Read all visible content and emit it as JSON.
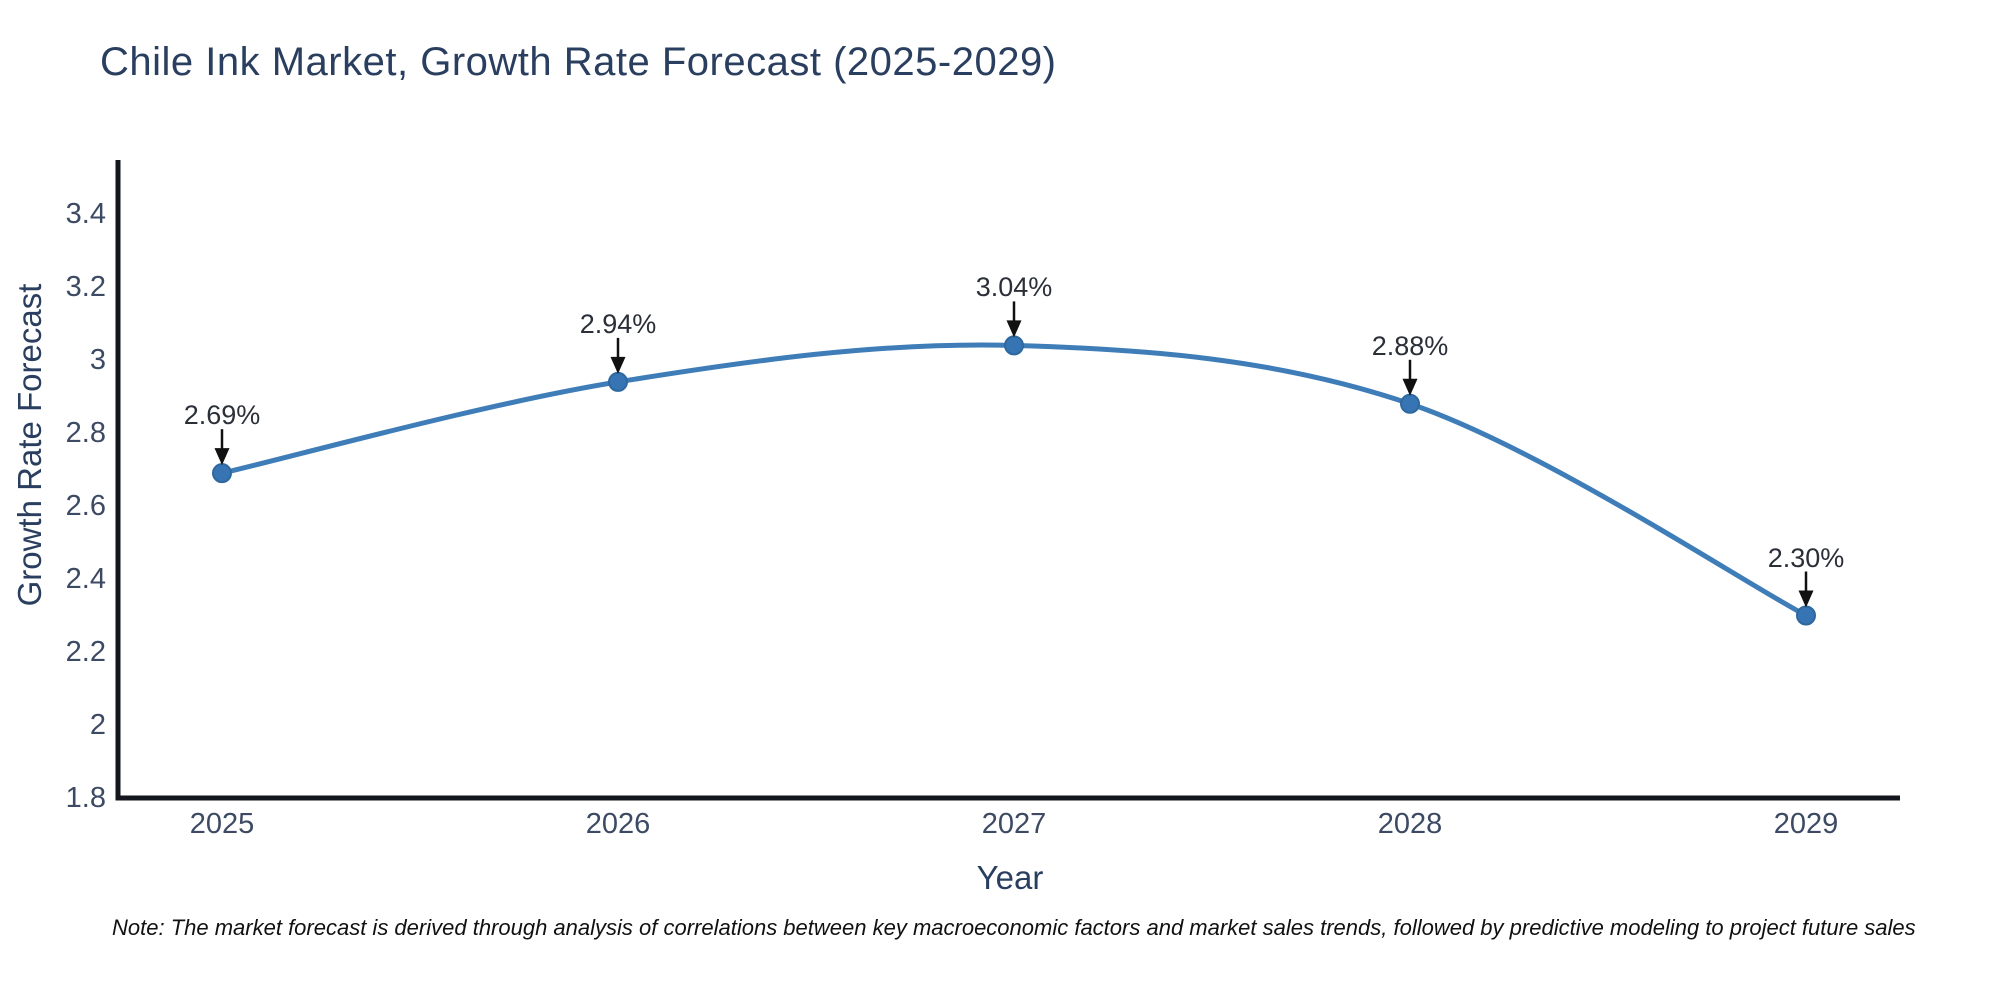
{
  "chart_data": {
    "type": "line",
    "title": "Chile Ink Market, Growth Rate Forecast (2025-2029)",
    "xlabel": "Year",
    "ylabel": "Growth Rate Forecast",
    "categories": [
      "2025",
      "2026",
      "2027",
      "2028",
      "2029"
    ],
    "series": [
      {
        "name": "Growth Rate Forecast",
        "values": [
          2.69,
          2.94,
          3.04,
          2.88,
          2.3
        ]
      }
    ],
    "point_labels": [
      "2.69%",
      "2.94%",
      "3.04%",
      "2.88%",
      "2.30%"
    ],
    "ylim": [
      1.8,
      3.4
    ],
    "ytick_step": 0.2,
    "line_shape": "spline",
    "grid": false,
    "legend": false,
    "colors": {
      "line": "#3f7db8",
      "marker": "#3674b3",
      "marker_edge": "#2d689f",
      "axis": "#13161d",
      "title_text": "#2a3f5f",
      "axis_title_text": "#2a3f5f",
      "tick_text": "#3d4a63",
      "annotation_text": "#2a2f38",
      "arrow": "#111111",
      "background": "#ffffff"
    }
  },
  "note": "Note: The market forecast is derived through analysis of correlations between key macroeconomic factors and market sales trends, followed by predictive modeling to project future sales"
}
